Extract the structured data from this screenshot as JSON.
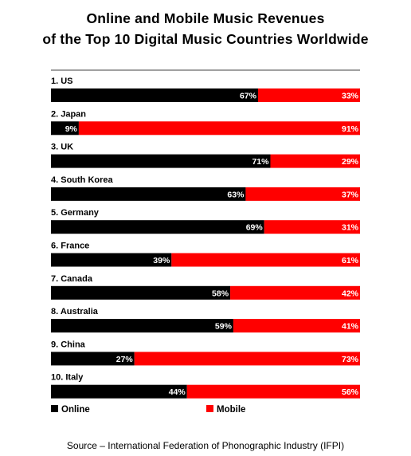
{
  "chart_data": {
    "type": "bar",
    "orientation": "horizontal",
    "stacked": true,
    "normalized": true,
    "title_lines": [
      "Online and Mobile Music Revenues",
      "of the Top 10 Digital Music Countries Worldwide"
    ],
    "categories": [
      "1. US",
      "2. Japan",
      "3. UK",
      "4. South Korea",
      "5. Germany",
      "6. France",
      "7. Canada",
      "8. Australia",
      "9. China",
      "10. Italy"
    ],
    "series": [
      {
        "name": "Online",
        "color": "#000000",
        "values": [
          67,
          9,
          71,
          63,
          69,
          39,
          58,
          59,
          27,
          44
        ]
      },
      {
        "name": "Mobile",
        "color": "#ff0000",
        "values": [
          33,
          91,
          29,
          37,
          31,
          61,
          42,
          41,
          73,
          56
        ]
      }
    ],
    "value_suffix": "%",
    "xlim": [
      0,
      100
    ],
    "legend_position": "bottom",
    "grid": false
  },
  "source": "Source – International  Federation  of Phonographic Industry (IFPI)"
}
